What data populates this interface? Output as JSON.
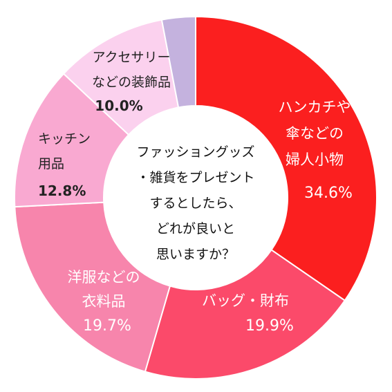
{
  "chart_data": {
    "type": "pie",
    "title": "",
    "center_text": [
      "ファッショングッズ",
      "・雑貨をプレゼント",
      "するとしたら、",
      "どれが良いと",
      "思いますか？"
    ],
    "slices": [
      {
        "label_lines": [
          "ハンカチや",
          "傘などの",
          "婦人小物"
        ],
        "value_text": "34.6%",
        "value": 34.6,
        "color": "#fb1f1f",
        "text_color": "#ffffff"
      },
      {
        "label_lines": [
          "バッグ・財布"
        ],
        "value_text": "19.9%",
        "value": 19.9,
        "color": "#fb4a6a",
        "text_color": "#ffffff"
      },
      {
        "label_lines": [
          "洋服などの",
          "衣料品"
        ],
        "value_text": "19.7%",
        "value": 19.7,
        "color": "#f785ac",
        "text_color": "#ffffff"
      },
      {
        "label_lines": [
          "キッチン",
          "用品"
        ],
        "value_text": "12.8%",
        "value": 12.8,
        "color": "#f9a9d1",
        "text_color": "#222222"
      },
      {
        "label_lines": [
          "アクセサリー",
          "などの装飾品"
        ],
        "value_text": "10.0%",
        "value": 10.0,
        "color": "#fbd1ee",
        "text_color": "#222222"
      },
      {
        "label_lines": [],
        "value_text": "",
        "value": 3.0,
        "color": "#c4b2de",
        "text_color": "#222222"
      }
    ]
  }
}
